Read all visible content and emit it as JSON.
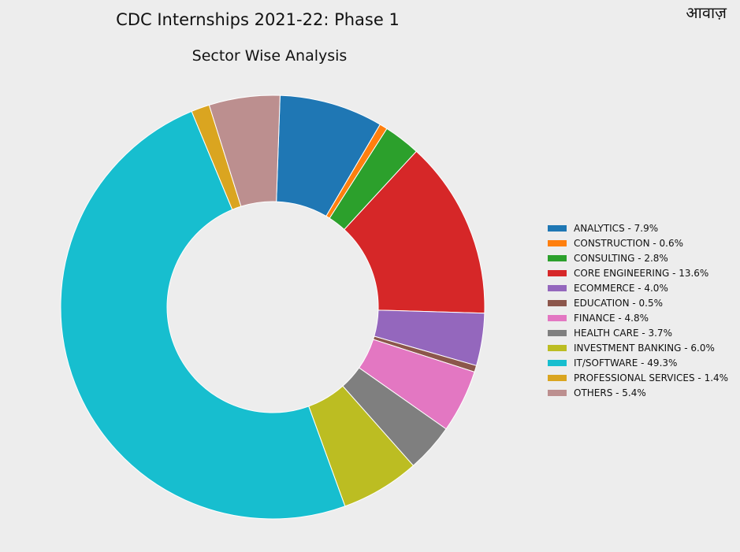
{
  "watermark": "आवाज़",
  "chart_data": {
    "type": "pie",
    "donut": true,
    "title": "CDC Internships 2021-22: Phase 1",
    "subtitle": "Sector Wise Analysis",
    "legend_position": "right",
    "slices": [
      {
        "label": "ANALYTICS - 7.9%",
        "value": 7.9,
        "color": "#1f77b4"
      },
      {
        "label": "CONSTRUCTION - 0.6%",
        "value": 0.6,
        "color": "#ff7f0e"
      },
      {
        "label": "CONSULTING - 2.8%",
        "value": 2.8,
        "color": "#2ca02c"
      },
      {
        "label": "CORE ENGINEERING - 13.6%",
        "value": 13.6,
        "color": "#d62728"
      },
      {
        "label": "ECOMMERCE - 4.0%",
        "value": 4.0,
        "color": "#9467bd"
      },
      {
        "label": "EDUCATION - 0.5%",
        "value": 0.5,
        "color": "#8c564b"
      },
      {
        "label": "FINANCE - 4.8%",
        "value": 4.8,
        "color": "#e377c2"
      },
      {
        "label": "HEALTH CARE - 3.7%",
        "value": 3.7,
        "color": "#7f7f7f"
      },
      {
        "label": "INVESTMENT BANKING - 6.0%",
        "value": 6.0,
        "color": "#bcbd22"
      },
      {
        "label": "IT/SOFTWARE - 49.3%",
        "value": 49.3,
        "color": "#17becf"
      },
      {
        "label": "PROFESSIONAL SERVICES - 1.4%",
        "value": 1.4,
        "color": "#daa520"
      },
      {
        "label": "OTHERS - 5.4%",
        "value": 5.4,
        "color": "#bc8f8f"
      }
    ]
  }
}
